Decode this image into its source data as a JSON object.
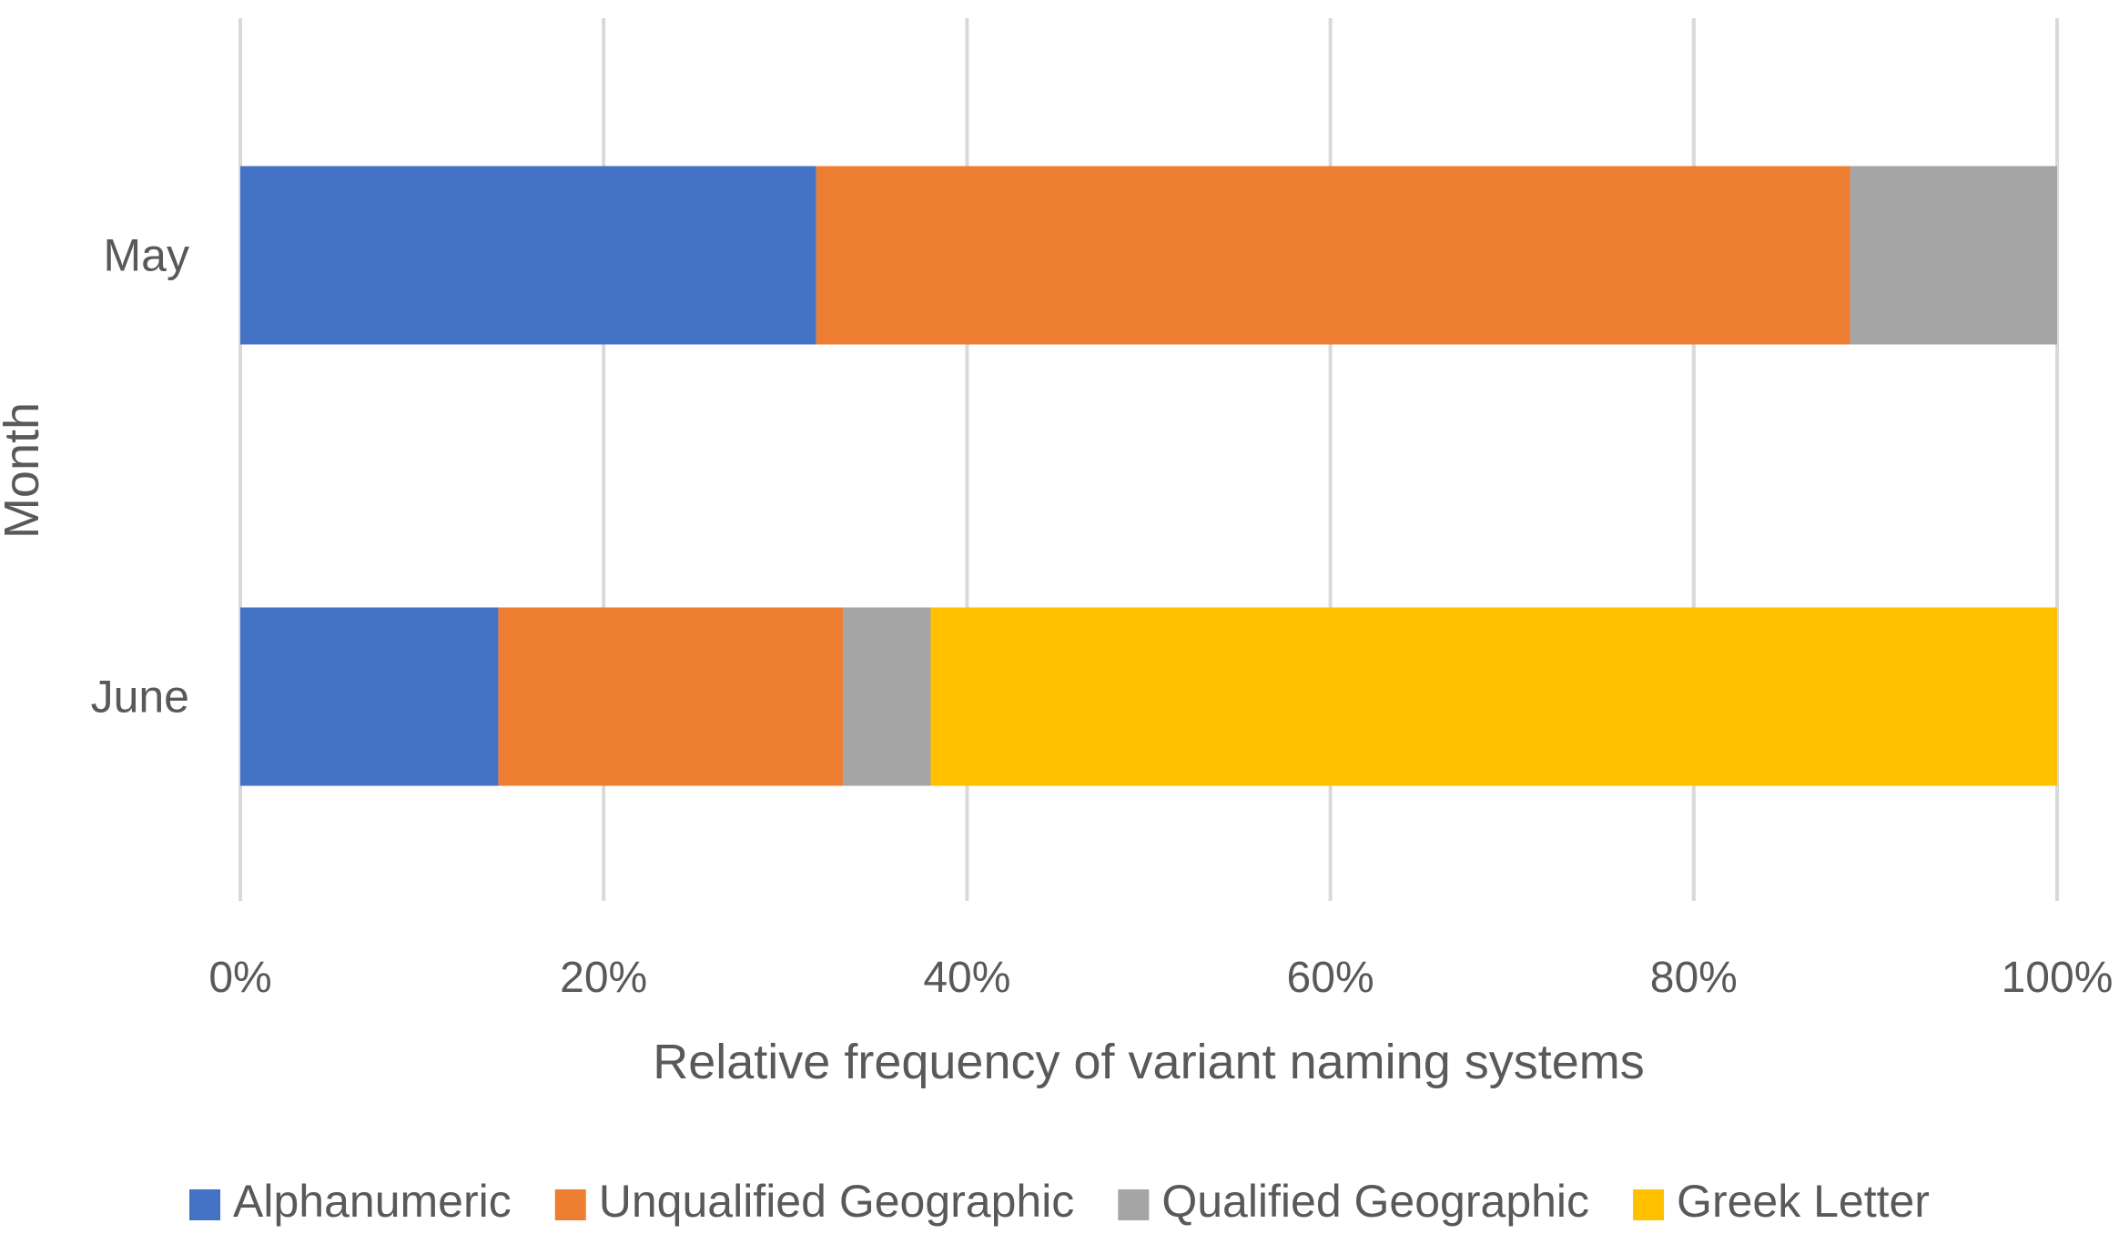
{
  "chart_data": {
    "type": "bar",
    "orientation": "horizontal",
    "stacking": "percent",
    "categories": [
      "May",
      "June"
    ],
    "series": [
      {
        "name": "Alphanumeric",
        "color": "#4472C4",
        "values": [
          31.7,
          14.2
        ]
      },
      {
        "name": "Unqualified Geographic",
        "color": "#ED7D31",
        "values": [
          56.9,
          19.0
        ]
      },
      {
        "name": "Qualified Geographic",
        "color": "#A5A5A5",
        "values": [
          11.4,
          4.8
        ]
      },
      {
        "name": "Greek Letter",
        "color": "#FFC000",
        "values": [
          0,
          62.0
        ]
      }
    ],
    "xlabel": "Relative frequency of variant naming systems",
    "ylabel": "Month",
    "xlim": [
      0,
      100
    ],
    "xticks": [
      0,
      20,
      40,
      60,
      80,
      100
    ],
    "xtick_labels": [
      "0%",
      "20%",
      "40%",
      "60%",
      "80%",
      "100%"
    ],
    "grid": "vertical",
    "legend": "bottom"
  }
}
